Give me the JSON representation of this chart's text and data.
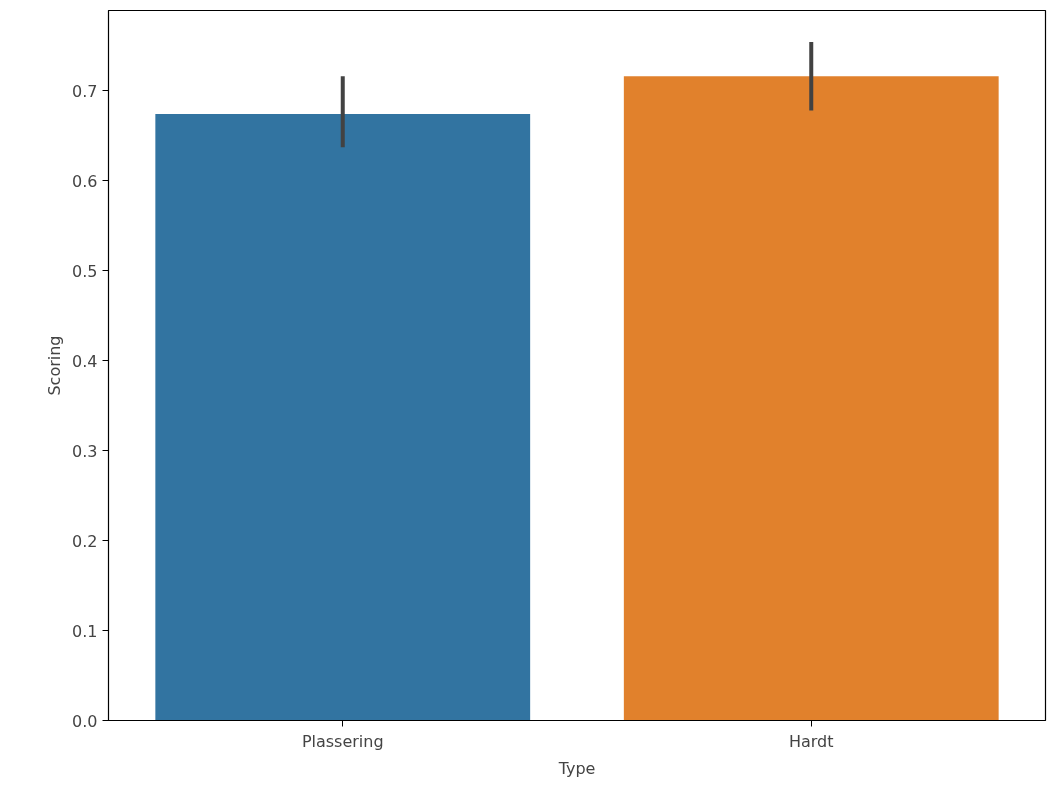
{
  "chart_data": {
    "type": "bar",
    "xlabel": "Type",
    "ylabel": "Scoring",
    "categories": [
      "Plassering",
      "Hardt"
    ],
    "values": [
      0.674,
      0.716
    ],
    "colors": [
      "#3274a1",
      "#e1812c"
    ],
    "errors": [
      [
        0.637,
        0.716
      ],
      [
        0.678,
        0.754
      ]
    ],
    "ylim": [
      0,
      0.789
    ],
    "yticks": [
      {
        "value": 0,
        "label": "0.0"
      },
      {
        "value": 0.1,
        "label": "0.1"
      },
      {
        "value": 0.2,
        "label": "0.2"
      },
      {
        "value": 0.3,
        "label": "0.3"
      },
      {
        "value": 0.4,
        "label": "0.4"
      },
      {
        "value": 0.5,
        "label": "0.5"
      },
      {
        "value": 0.6,
        "label": "0.6"
      },
      {
        "value": 0.7,
        "label": "0.7"
      }
    ],
    "grid": false
  }
}
